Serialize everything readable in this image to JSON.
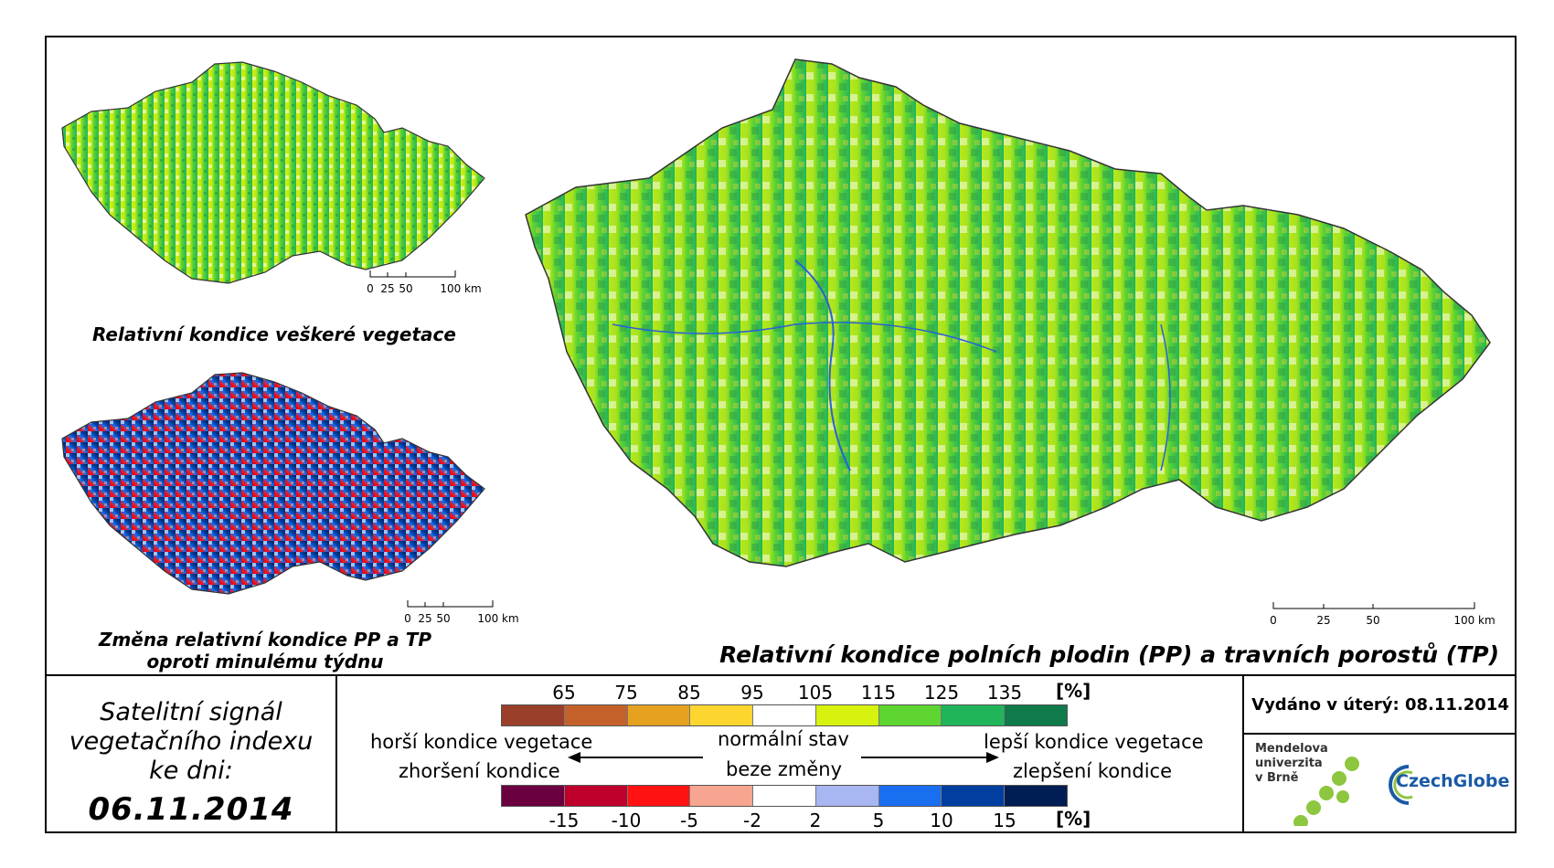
{
  "maps": {
    "main": {
      "title": "Relativní kondice polních plodin (PP) a travních porostů (TP)",
      "scale_ticks": [
        "0",
        "25",
        "50",
        "100 km"
      ]
    },
    "top_small": {
      "title": "Relativní kondice veškeré vegetace",
      "scale_ticks": [
        "0",
        "25",
        "50",
        "100 km"
      ]
    },
    "bottom_small": {
      "title_line1": "Změna relativní kondice PP a TP",
      "title_line2": "oproti minulému týdnu",
      "scale_ticks": [
        "0",
        "25",
        "50",
        "100 km"
      ]
    }
  },
  "info": {
    "line1": "Satelitní signál",
    "line2": "vegetačního indexu",
    "line3": "ke dni:",
    "date": "06.11.2014"
  },
  "legend": {
    "top_ticks": [
      "65",
      "75",
      "85",
      "95",
      "105",
      "115",
      "125",
      "135"
    ],
    "top_unit": "[%]",
    "top_colors": [
      "#9a3f2a",
      "#c4612a",
      "#e5a11f",
      "#fcd62f",
      "#ffffff",
      "#d6f20e",
      "#5ed530",
      "#20b55a",
      "#0f7a4a"
    ],
    "bottom_ticks": [
      "-15",
      "-10",
      "-5",
      "-2",
      "2",
      "5",
      "10",
      "15"
    ],
    "bottom_unit": "[%]",
    "bottom_colors": [
      "#6b0040",
      "#c0002c",
      "#ff1212",
      "#f6a590",
      "#ffffff",
      "#a8b6f2",
      "#1a6ff0",
      "#003ea0",
      "#001d54"
    ],
    "left_text_1": "horší kondice vegetace",
    "left_text_2": "zhoršení kondice",
    "center_text_1": "normální stav",
    "center_text_2": "beze změny",
    "right_text_1": "lepší kondice vegetace",
    "right_text_2": "zlepšení kondice"
  },
  "issued": "Vydáno v úterý: 08.11.2014",
  "logos": {
    "mendel": "Mendelova univerzita v Brně",
    "mendel_lines": [
      "Mendelova",
      "univerzita",
      "v Brně"
    ],
    "czechglobe": "CzechGlobe"
  }
}
